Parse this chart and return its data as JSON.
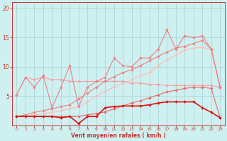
{
  "xlabel": "Vent moyen/en rafales ( km/h )",
  "bg_color": "#cef0f0",
  "grid_color": "#aad8d8",
  "spine_color": "#cc3333",
  "tick_color": "#cc3333",
  "x_values": [
    0,
    1,
    2,
    3,
    4,
    5,
    6,
    7,
    8,
    9,
    10,
    11,
    12,
    13,
    14,
    15,
    16,
    17,
    18,
    19,
    20,
    21,
    22,
    23
  ],
  "line_flat": [
    5.2,
    8.2,
    7.8,
    8.2,
    7.8,
    7.8,
    7.5,
    7.5,
    7.5,
    7.5,
    7.5,
    7.5,
    7.5,
    7.2,
    7.2,
    7.0,
    7.0,
    6.8,
    6.8,
    6.8,
    6.8,
    6.8,
    6.8,
    6.5
  ],
  "line_erratic": [
    5.2,
    8.2,
    6.5,
    8.5,
    3.0,
    6.5,
    10.2,
    3.2,
    6.5,
    7.5,
    8.2,
    11.5,
    10.2,
    10.0,
    11.5,
    11.5,
    13.0,
    16.3,
    13.0,
    15.3,
    15.0,
    15.3,
    13.0,
    6.5
  ],
  "line_upper": [
    1.5,
    1.8,
    2.2,
    2.5,
    2.8,
    3.2,
    3.5,
    4.5,
    5.5,
    6.5,
    7.5,
    8.3,
    9.0,
    9.5,
    10.2,
    11.0,
    11.8,
    12.5,
    13.2,
    13.5,
    14.0,
    14.5,
    13.0,
    6.5
  ],
  "line_mid": [
    1.5,
    1.6,
    1.8,
    2.0,
    2.2,
    2.5,
    2.8,
    3.2,
    4.0,
    5.0,
    5.8,
    6.5,
    7.2,
    7.8,
    8.5,
    9.0,
    10.2,
    11.2,
    12.0,
    12.8,
    13.2,
    13.3,
    13.0,
    6.8
  ],
  "line_bottom_dark": [
    1.5,
    1.5,
    1.5,
    1.5,
    1.5,
    1.3,
    1.5,
    0.3,
    1.5,
    1.5,
    3.0,
    3.2,
    3.3,
    3.3,
    3.3,
    3.5,
    3.8,
    4.0,
    4.0,
    4.0,
    4.0,
    3.0,
    2.2,
    1.3
  ],
  "line_bottom_light": [
    1.5,
    1.5,
    1.5,
    1.5,
    1.5,
    1.5,
    1.5,
    1.5,
    1.8,
    2.0,
    2.3,
    2.8,
    3.3,
    3.8,
    4.2,
    4.7,
    5.2,
    5.7,
    6.0,
    6.3,
    6.5,
    6.5,
    6.3,
    1.3
  ],
  "color_erratic": "#f08080",
  "color_flat": "#f4a0a0",
  "color_upper": "#f08080",
  "color_mid": "#ffbbbb",
  "color_bottom_dark": "#dd1111",
  "color_bottom_light": "#ee6666",
  "yticks": [
    5,
    10,
    15,
    20
  ],
  "ylim": [
    0,
    21
  ],
  "xlim": [
    -0.5,
    23.5
  ]
}
